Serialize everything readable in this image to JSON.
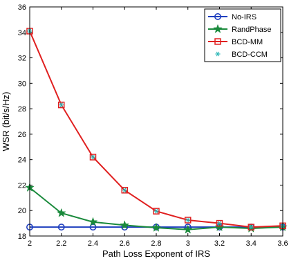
{
  "chart_data": {
    "type": "line",
    "xlabel": "Path Loss Exponent of IRS",
    "ylabel": "WSR (bit/s/Hz)",
    "xlim": [
      2,
      3.6
    ],
    "ylim": [
      18,
      36
    ],
    "xticks": [
      2,
      2.2,
      2.4,
      2.6,
      2.8,
      3,
      3.2,
      3.4,
      3.6
    ],
    "xtick_labels": [
      "2",
      "2.2",
      "2.4",
      "2.6",
      "2.8",
      "3",
      "3.2",
      "3.4",
      "3.6"
    ],
    "yticks": [
      18,
      20,
      22,
      24,
      26,
      28,
      30,
      32,
      34,
      36
    ],
    "ytick_labels": [
      "18",
      "20",
      "22",
      "24",
      "26",
      "28",
      "30",
      "32",
      "34",
      "36"
    ],
    "grid": false,
    "legend_position": "top-right",
    "x": [
      2,
      2.2,
      2.4,
      2.6,
      2.8,
      3,
      3.2,
      3.4,
      3.6
    ],
    "series": [
      {
        "name": "No-IRS",
        "color": "#1f3fbf",
        "marker": "circle",
        "values": [
          18.7,
          18.7,
          18.7,
          18.7,
          18.7,
          18.7,
          18.7,
          18.7,
          18.7
        ]
      },
      {
        "name": "RandPhase",
        "color": "#1a8a3c",
        "marker": "star",
        "values": [
          21.8,
          19.8,
          19.1,
          18.85,
          18.65,
          18.5,
          18.7,
          18.6,
          18.7
        ]
      },
      {
        "name": "BCD-MM",
        "color": "#e02020",
        "marker": "square",
        "values": [
          34.1,
          28.3,
          24.2,
          21.6,
          19.95,
          19.25,
          19.0,
          18.7,
          18.8
        ]
      },
      {
        "name": "BCD-CCM",
        "color": "#26b5b5",
        "marker": "asterisk",
        "values": [
          34.1,
          28.3,
          24.2,
          21.6,
          19.95,
          19.25,
          19.0,
          18.7,
          18.8
        ]
      }
    ]
  }
}
